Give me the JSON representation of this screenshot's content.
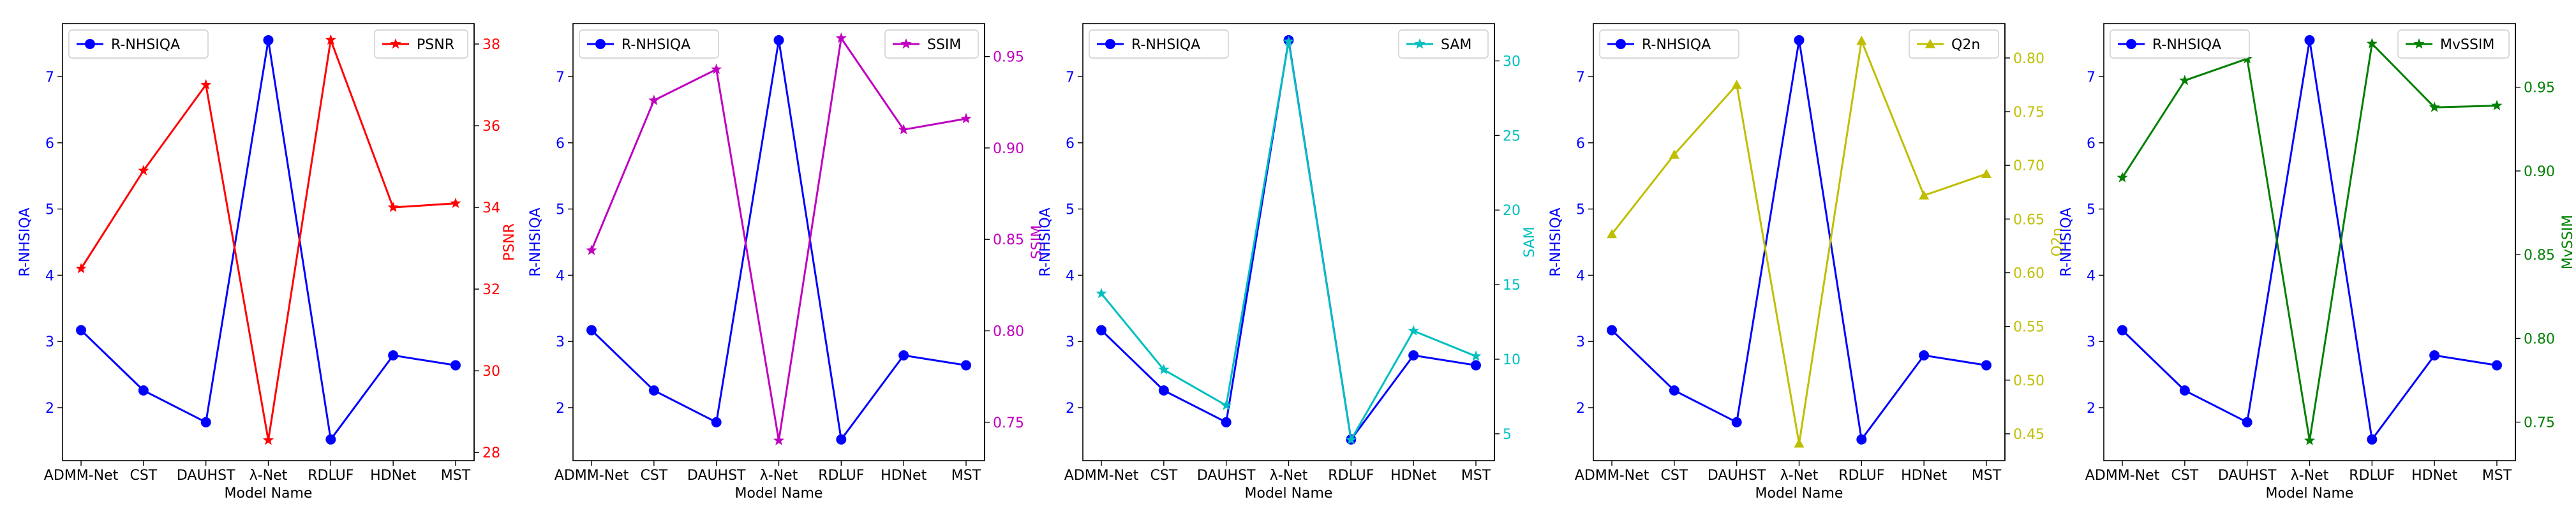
{
  "chart_data": [
    {
      "type": "line",
      "categories": [
        "ADMM-Net",
        "CST",
        "DAUHST",
        "λ-Net",
        "RDLUF",
        "HDNet",
        "MST"
      ],
      "xlabel": "Model Name",
      "left": {
        "name": "R-NHSIQA",
        "ylabel": "R-NHSIQA",
        "color": "#0000ff",
        "marker": "circle",
        "ylim": [
          1.2,
          7.8
        ],
        "ticks": [
          2,
          3,
          4,
          5,
          6,
          7
        ],
        "tick_labels": [
          "2",
          "3",
          "4",
          "5",
          "6",
          "7"
        ],
        "values": [
          3.17,
          2.26,
          1.78,
          7.55,
          1.52,
          2.79,
          2.64
        ]
      },
      "right": {
        "name": "PSNR",
        "ylabel": "PSNR",
        "color": "#ff0000",
        "marker": "star",
        "ylim": [
          27.8,
          38.5
        ],
        "ticks": [
          28,
          30,
          32,
          34,
          36,
          38
        ],
        "tick_labels": [
          "28",
          "30",
          "32",
          "34",
          "36",
          "38"
        ],
        "values": [
          32.5,
          34.9,
          37.0,
          28.3,
          38.1,
          34.0,
          34.1
        ]
      },
      "legend_left": "top-left",
      "legend_right": "top-right"
    },
    {
      "type": "line",
      "categories": [
        "ADMM-Net",
        "CST",
        "DAUHST",
        "λ-Net",
        "RDLUF",
        "HDNet",
        "MST"
      ],
      "xlabel": "Model Name",
      "left": {
        "name": "R-NHSIQA",
        "ylabel": "R-NHSIQA",
        "color": "#0000ff",
        "marker": "circle",
        "ylim": [
          1.2,
          7.8
        ],
        "ticks": [
          2,
          3,
          4,
          5,
          6,
          7
        ],
        "tick_labels": [
          "2",
          "3",
          "4",
          "5",
          "6",
          "7"
        ],
        "values": [
          3.17,
          2.26,
          1.78,
          7.55,
          1.52,
          2.79,
          2.64
        ]
      },
      "right": {
        "name": "SSIM",
        "ylabel": "SSIM",
        "color": "#bf00bf",
        "marker": "star",
        "ylim": [
          0.729,
          0.968
        ],
        "ticks": [
          0.75,
          0.8,
          0.85,
          0.9,
          0.95
        ],
        "tick_labels": [
          "0.75",
          "0.80",
          "0.85",
          "0.90",
          "0.95"
        ],
        "values": [
          0.844,
          0.926,
          0.943,
          0.74,
          0.96,
          0.91,
          0.916
        ]
      },
      "legend_left": "top-left",
      "legend_right": "top-right"
    },
    {
      "type": "line",
      "categories": [
        "ADMM-Net",
        "CST",
        "DAUHST",
        "λ-Net",
        "RDLUF",
        "HDNet",
        "MST"
      ],
      "xlabel": "Model Name",
      "left": {
        "name": "R-NHSIQA",
        "ylabel": "R-NHSIQA",
        "color": "#0000ff",
        "marker": "circle",
        "ylim": [
          1.2,
          7.8
        ],
        "ticks": [
          2,
          3,
          4,
          5,
          6,
          7
        ],
        "tick_labels": [
          "2",
          "3",
          "4",
          "5",
          "6",
          "7"
        ],
        "values": [
          3.17,
          2.26,
          1.78,
          7.55,
          1.52,
          2.79,
          2.64
        ]
      },
      "right": {
        "name": "SAM",
        "ylabel": "SAM",
        "color": "#00bfbf",
        "marker": "star",
        "ylim": [
          3.2,
          32.5
        ],
        "ticks": [
          5,
          10,
          15,
          20,
          25,
          30
        ],
        "tick_labels": [
          "5",
          "10",
          "15",
          "20",
          "25",
          "30"
        ],
        "values": [
          14.4,
          9.3,
          6.9,
          31.3,
          4.6,
          11.9,
          10.2
        ]
      },
      "legend_left": "top-left",
      "legend_right": "top-right"
    },
    {
      "type": "line",
      "categories": [
        "ADMM-Net",
        "CST",
        "DAUHST",
        "λ-Net",
        "RDLUF",
        "HDNet",
        "MST"
      ],
      "xlabel": "Model Name",
      "left": {
        "name": "R-NHSIQA",
        "ylabel": "R-NHSIQA",
        "color": "#0000ff",
        "marker": "circle",
        "ylim": [
          1.2,
          7.8
        ],
        "ticks": [
          2,
          3,
          4,
          5,
          6,
          7
        ],
        "tick_labels": [
          "2",
          "3",
          "4",
          "5",
          "6",
          "7"
        ],
        "values": [
          3.17,
          2.26,
          1.78,
          7.55,
          1.52,
          2.79,
          2.64
        ]
      },
      "right": {
        "name": "Q2n",
        "ylabel": "Q2n",
        "color": "#bfbf00",
        "marker": "triangle",
        "ylim": [
          0.425,
          0.832
        ],
        "ticks": [
          0.45,
          0.5,
          0.55,
          0.6,
          0.65,
          0.7,
          0.75,
          0.8
        ],
        "tick_labels": [
          "0.45",
          "0.50",
          "0.55",
          "0.60",
          "0.65",
          "0.70",
          "0.75",
          "0.80"
        ],
        "values": [
          0.636,
          0.71,
          0.775,
          0.441,
          0.816,
          0.672,
          0.692
        ]
      },
      "legend_left": "top-left",
      "legend_right": "top-right"
    },
    {
      "type": "line",
      "categories": [
        "ADMM-Net",
        "CST",
        "DAUHST",
        "λ-Net",
        "RDLUF",
        "HDNet",
        "MST"
      ],
      "xlabel": "Model Name",
      "left": {
        "name": "R-NHSIQA",
        "ylabel": "R-NHSIQA",
        "color": "#0000ff",
        "marker": "circle",
        "ylim": [
          1.2,
          7.8
        ],
        "ticks": [
          2,
          3,
          4,
          5,
          6,
          7
        ],
        "tick_labels": [
          "2",
          "3",
          "4",
          "5",
          "6",
          "7"
        ],
        "values": [
          3.17,
          2.26,
          1.78,
          7.55,
          1.52,
          2.79,
          2.64
        ]
      },
      "right": {
        "name": "MvSSIM",
        "ylabel": "MvSSIM",
        "color": "#008000",
        "marker": "star",
        "ylim": [
          0.727,
          0.988
        ],
        "ticks": [
          0.75,
          0.8,
          0.85,
          0.9,
          0.95
        ],
        "tick_labels": [
          "0.75",
          "0.80",
          "0.85",
          "0.90",
          "0.95"
        ],
        "values": [
          0.896,
          0.954,
          0.967,
          0.739,
          0.976,
          0.938,
          0.939
        ]
      },
      "legend_left": "top-left",
      "legend_right": "top-right"
    }
  ]
}
